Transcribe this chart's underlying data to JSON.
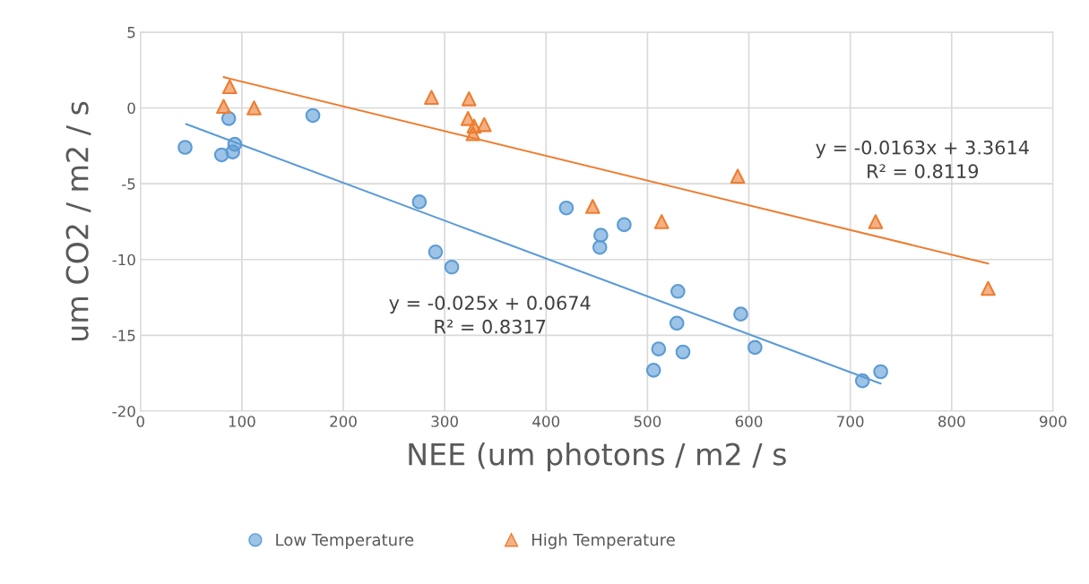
{
  "chart_data": {
    "type": "scatter",
    "xlabel": "NEE (um photons / m2 / s",
    "ylabel": "um CO2 / m2 / s",
    "xlim": [
      0,
      900
    ],
    "xticks": [
      0,
      100,
      200,
      300,
      400,
      500,
      600,
      700,
      800,
      900
    ],
    "ylim": [
      -20,
      5
    ],
    "yticks": [
      -20,
      -15,
      -10,
      -5,
      0,
      5
    ],
    "grid": true,
    "legend": "bottom",
    "series": [
      {
        "name": "Low Temperature",
        "marker": "circle",
        "color": "#5b9bd5",
        "x": [
          44,
          80,
          87,
          93,
          91,
          170,
          275,
          291,
          307,
          420,
          454,
          453,
          477,
          530,
          529,
          511,
          506,
          535,
          592,
          606,
          712,
          730
        ],
        "values": [
          -2.6,
          -3.1,
          -0.7,
          -2.4,
          -2.9,
          -0.5,
          -6.2,
          -9.5,
          -10.5,
          -6.6,
          -8.4,
          -9.2,
          -7.7,
          -12.1,
          -14.2,
          -15.9,
          -17.3,
          -16.1,
          -13.6,
          -15.8,
          -18.0,
          -17.4
        ]
      },
      {
        "name": "High Temperature",
        "marker": "triangle",
        "color": "#ed7d31",
        "x": [
          82,
          88,
          112,
          287,
          324,
          323,
          329,
          339,
          328,
          446,
          514,
          589,
          725,
          836
        ],
        "values": [
          0.1,
          1.4,
          0.0,
          0.7,
          0.6,
          -0.7,
          -1.2,
          -1.1,
          -1.7,
          -6.5,
          -7.5,
          -4.5,
          -7.5,
          -11.9
        ]
      },
      {
        "type": "line",
        "color": "#5b9bd5",
        "x": [
          45,
          730
        ],
        "values": [
          -1.06,
          -18.18
        ]
      },
      {
        "type": "line",
        "color": "#ed7d31",
        "x": [
          82,
          836
        ],
        "values": [
          2.03,
          -10.27
        ]
      }
    ],
    "annotations": [
      "y = -0.025x + 0.0674\nR² = 0.8317",
      "y = -0.0163x + 3.3614\nR² = 0.8119"
    ]
  }
}
